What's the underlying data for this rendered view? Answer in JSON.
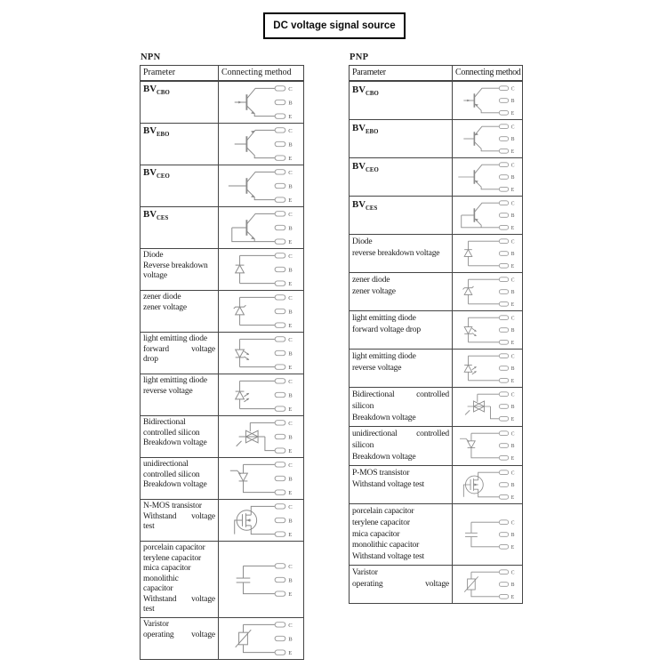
{
  "title": "DC voltage signal source",
  "terminals": [
    "C",
    "B",
    "E"
  ],
  "colors": {
    "border": "#454545",
    "text": "#1b1b1b",
    "diagram_stroke": "#8a8a8a",
    "title_border": "#000000",
    "background": "#ffffff"
  },
  "tables": {
    "npn": {
      "label": "NPN",
      "headers": [
        "Prameter",
        "Connecting method"
      ],
      "rows": [
        {
          "param_main": "BV",
          "param_sub": "CBO",
          "diagram": "bjt-npn-cbo"
        },
        {
          "param_main": "BV",
          "param_sub": "EBO",
          "diagram": "bjt-npn-ebo"
        },
        {
          "param_main": "BV",
          "param_sub": "CEO",
          "diagram": "bjt-npn-ceo"
        },
        {
          "param_main": "BV",
          "param_sub": "CES",
          "diagram": "bjt-npn-ces"
        },
        {
          "param_lines": [
            "Diode",
            "Reverse breakdown",
            "voltage"
          ],
          "diagram": "diode"
        },
        {
          "param_lines": [
            "zener diode",
            "zener voltage"
          ],
          "diagram": "zener"
        },
        {
          "param_lines": [
            "light emitting diode",
            "forward  voltage",
            "drop"
          ],
          "diagram": "led-forward"
        },
        {
          "param_lines": [
            "light emitting diode",
            "reverse voltage"
          ],
          "diagram": "led-reverse"
        },
        {
          "param_lines": [
            "Bidirectional",
            "controlled silicon",
            "Breakdown voltage"
          ],
          "diagram": "triac"
        },
        {
          "param_lines": [
            "unidirectional",
            "controlled silicon",
            "Breakdown voltage"
          ],
          "diagram": "scr"
        },
        {
          "param_lines": [
            "N-MOS transistor",
            "Withstand  voltage",
            "test"
          ],
          "diagram": "nmos"
        },
        {
          "param_lines": [
            "porcelain capacitor",
            "terylene capacitor",
            "mica capacitor",
            "monolithic",
            "capacitor",
            "Withstand  voltage",
            "test"
          ],
          "diagram": "capacitor"
        },
        {
          "param_lines": [
            "Varistor",
            "operating  voltage"
          ],
          "diagram": "varistor"
        }
      ]
    },
    "pnp": {
      "label": "PNP",
      "headers": [
        "Parameter",
        "Connecting method"
      ],
      "rows": [
        {
          "param_main": "BV",
          "param_sub": "CBO",
          "diagram": "bjt-pnp-cbo"
        },
        {
          "param_main": "BV",
          "param_sub": "EBO",
          "diagram": "bjt-pnp-ebo"
        },
        {
          "param_main": "BV",
          "param_sub": "CEO",
          "diagram": "bjt-pnp-ceo"
        },
        {
          "param_main": "BV",
          "param_sub": "CES",
          "diagram": "bjt-pnp-ces"
        },
        {
          "param_lines": [
            "Diode",
            "reverse breakdown voltage"
          ],
          "diagram": "diode"
        },
        {
          "param_lines": [
            "zener diode",
            "zener voltage"
          ],
          "diagram": "zener"
        },
        {
          "param_lines": [
            "light emitting diode",
            "forward voltage drop"
          ],
          "diagram": "led-forward"
        },
        {
          "param_lines": [
            "light emitting diode",
            "reverse voltage"
          ],
          "diagram": "led-reverse"
        },
        {
          "param_lines": [
            "Bidirectional  controlled",
            "silicon",
            "Breakdown voltage"
          ],
          "diagram": "triac"
        },
        {
          "param_lines": [
            "unidirectional  controlled",
            "silicon",
            "Breakdown voltage"
          ],
          "diagram": "scr"
        },
        {
          "param_lines": [
            "P-MOS transistor",
            "Withstand voltage test"
          ],
          "diagram": "pmos"
        },
        {
          "param_lines": [
            "porcelain capacitor",
            "terylene capacitor",
            "mica capacitor",
            "monolithic capacitor",
            "Withstand voltage test"
          ],
          "diagram": "capacitor"
        },
        {
          "param_lines": [
            "Varistor",
            "operating  voltage"
          ],
          "diagram": "varistor"
        }
      ]
    }
  }
}
